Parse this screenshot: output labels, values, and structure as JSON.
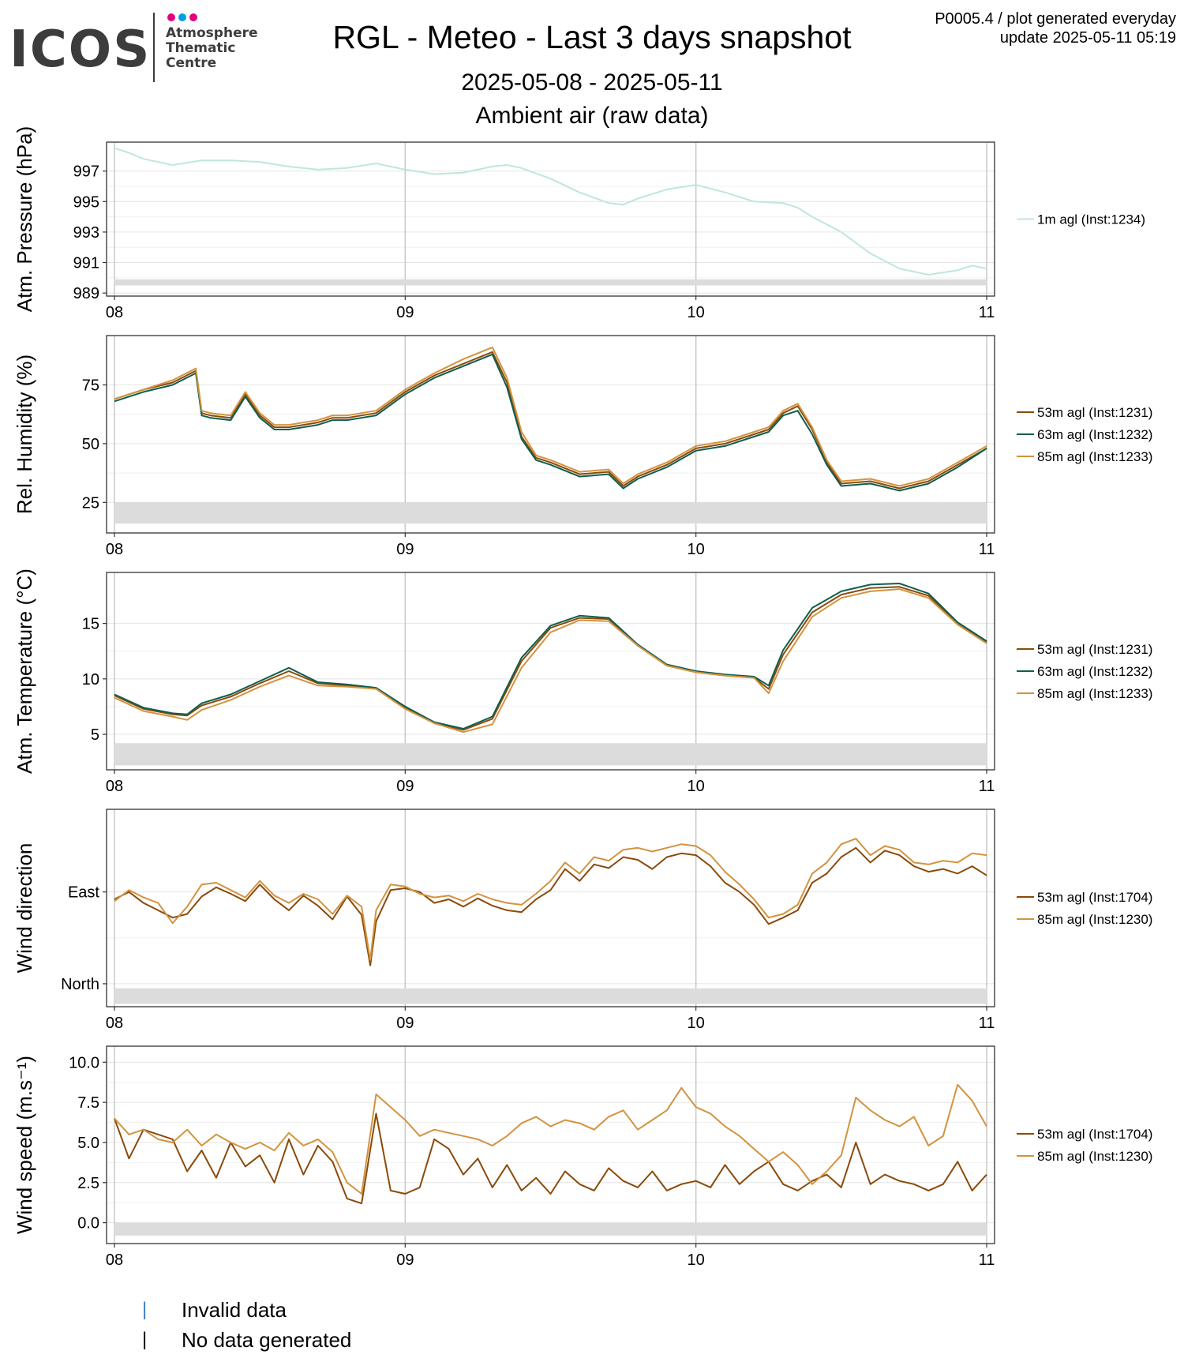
{
  "logo": {
    "name": "ICOS",
    "line1": "Atmosphere",
    "line2": "Thematic",
    "line3": "Centre"
  },
  "header": {
    "title": "RGL - Meteo - Last 3 days snapshot",
    "date_range": "2025-05-08 - 2025-05-11",
    "section": "Ambient air (raw data)",
    "meta1": "P0005.4 / plot generated everyday",
    "meta2": "update  2025-05-11 05:19"
  },
  "footer": {
    "items": [
      {
        "mark": "|",
        "label": "Invalid data",
        "color": "#3a7ec7"
      },
      {
        "mark": "|",
        "label": "No data generated",
        "color": "#000000"
      }
    ]
  },
  "colors": {
    "c53": "#8B4A0A",
    "c63": "#0E5E4F",
    "c85": "#D3933E",
    "pressure": "#bfe6df"
  },
  "chart_data": [
    {
      "type": "line",
      "ylabel": "Atm. Pressure (hPa)",
      "x_ticks": [
        "08",
        "09",
        "10",
        "11"
      ],
      "ylim": [
        988.8,
        998.9
      ],
      "y_ticks": [
        {
          "v": 997,
          "l": "997"
        },
        {
          "v": 995,
          "l": "995"
        },
        {
          "v": 993,
          "l": "993"
        },
        {
          "v": 991,
          "l": "991"
        },
        {
          "v": 989,
          "l": "989"
        }
      ],
      "nodata_band": [
        989.5,
        989.9
      ],
      "legend": "right",
      "series": [
        {
          "name": "1m agl (Inst:1234)",
          "color": "#bfe6df",
          "x": [
            0,
            0.05,
            0.1,
            0.2,
            0.3,
            0.4,
            0.5,
            0.6,
            0.7,
            0.8,
            0.9,
            1.0,
            1.1,
            1.2,
            1.3,
            1.35,
            1.4,
            1.5,
            1.6,
            1.7,
            1.75,
            1.8,
            1.9,
            2.0,
            2.1,
            2.2,
            2.3,
            2.35,
            2.4,
            2.5,
            2.6,
            2.7,
            2.8,
            2.9,
            2.95,
            3.0
          ],
          "y": [
            998.5,
            998.2,
            997.8,
            997.4,
            997.7,
            997.7,
            997.6,
            997.3,
            997.1,
            997.2,
            997.5,
            997.1,
            996.8,
            996.9,
            997.3,
            997.4,
            997.2,
            996.5,
            995.6,
            994.9,
            994.8,
            995.2,
            995.8,
            996.1,
            995.6,
            995.0,
            994.9,
            994.6,
            994.0,
            993.0,
            991.6,
            990.6,
            990.2,
            990.5,
            990.8,
            990.6
          ]
        }
      ]
    },
    {
      "type": "line",
      "ylabel": "Rel. Humidity (%)",
      "x_ticks": [
        "08",
        "09",
        "10",
        "11"
      ],
      "ylim": [
        12,
        96
      ],
      "y_ticks": [
        {
          "v": 75,
          "l": "75"
        },
        {
          "v": 50,
          "l": "50"
        },
        {
          "v": 25,
          "l": "25"
        }
      ],
      "nodata_band": [
        16,
        25
      ],
      "legend": "right",
      "x_shared": [
        0,
        0.1,
        0.2,
        0.28,
        0.3,
        0.33,
        0.4,
        0.45,
        0.5,
        0.55,
        0.6,
        0.7,
        0.75,
        0.8,
        0.9,
        1.0,
        1.1,
        1.2,
        1.3,
        1.35,
        1.4,
        1.45,
        1.5,
        1.6,
        1.7,
        1.75,
        1.8,
        1.9,
        2.0,
        2.1,
        2.2,
        2.25,
        2.3,
        2.35,
        2.4,
        2.45,
        2.5,
        2.6,
        2.7,
        2.8,
        2.9,
        3.0
      ],
      "series": [
        {
          "name": "53m agl (Inst:1231)",
          "color": "#8B4A0A",
          "y": [
            69,
            73,
            76,
            81,
            63,
            62,
            61,
            71,
            62,
            57,
            57,
            59,
            61,
            61,
            63,
            72,
            79,
            84,
            89,
            76,
            53,
            44,
            42,
            37,
            38,
            32,
            36,
            41,
            48,
            50,
            54,
            56,
            63,
            66,
            56,
            42,
            33,
            34,
            31,
            34,
            41,
            48
          ]
        },
        {
          "name": "63m agl (Inst:1232)",
          "color": "#0E5E4F",
          "y": [
            68,
            72,
            75,
            80,
            62,
            61,
            60,
            70,
            61,
            56,
            56,
            58,
            60,
            60,
            62,
            71,
            78,
            83,
            88,
            74,
            52,
            43,
            41,
            36,
            37,
            31,
            35,
            40,
            47,
            49,
            53,
            55,
            62,
            64,
            54,
            41,
            32,
            33,
            30,
            33,
            40,
            48
          ]
        },
        {
          "name": "85m agl (Inst:1233)",
          "color": "#D3933E",
          "y": [
            69,
            73,
            77,
            82,
            64,
            63,
            62,
            72,
            63,
            58,
            58,
            60,
            62,
            62,
            64,
            73,
            80,
            86,
            91,
            78,
            55,
            45,
            43,
            38,
            39,
            33,
            37,
            42,
            49,
            51,
            55,
            57,
            64,
            67,
            57,
            43,
            34,
            35,
            32,
            35,
            42,
            49
          ]
        }
      ]
    },
    {
      "type": "line",
      "ylabel": "Atm. Temperature (°C)",
      "x_ticks": [
        "08",
        "09",
        "10",
        "11"
      ],
      "ylim": [
        1.8,
        19.6
      ],
      "y_ticks": [
        {
          "v": 15,
          "l": "15"
        },
        {
          "v": 10,
          "l": "10"
        },
        {
          "v": 5,
          "l": "5"
        }
      ],
      "nodata_band": [
        2.2,
        4.2
      ],
      "legend": "right",
      "x_shared": [
        0,
        0.1,
        0.2,
        0.25,
        0.3,
        0.4,
        0.5,
        0.6,
        0.7,
        0.8,
        0.9,
        1.0,
        1.1,
        1.2,
        1.3,
        1.4,
        1.5,
        1.6,
        1.7,
        1.8,
        1.9,
        2.0,
        2.1,
        2.2,
        2.25,
        2.3,
        2.4,
        2.5,
        2.6,
        2.7,
        2.8,
        2.9,
        3.0
      ],
      "series": [
        {
          "name": "53m agl (Inst:1231)",
          "color": "#8B4A0A",
          "y": [
            8.5,
            7.3,
            6.8,
            6.7,
            7.6,
            8.4,
            9.6,
            10.7,
            9.6,
            9.4,
            9.1,
            7.4,
            6.0,
            5.4,
            6.4,
            11.6,
            14.6,
            15.5,
            15.4,
            13.0,
            11.2,
            10.6,
            10.3,
            10.1,
            9.1,
            12.2,
            16.0,
            17.6,
            18.2,
            18.3,
            17.5,
            15.0,
            13.3
          ]
        },
        {
          "name": "63m agl (Inst:1232)",
          "color": "#0E5E4F",
          "y": [
            8.6,
            7.4,
            6.9,
            6.8,
            7.8,
            8.6,
            9.8,
            11.0,
            9.7,
            9.5,
            9.2,
            7.5,
            6.1,
            5.5,
            6.6,
            11.9,
            14.8,
            15.7,
            15.5,
            13.1,
            11.3,
            10.7,
            10.4,
            10.2,
            9.4,
            12.6,
            16.4,
            17.9,
            18.5,
            18.6,
            17.7,
            15.1,
            13.4
          ]
        },
        {
          "name": "85m agl (Inst:1233)",
          "color": "#D3933E",
          "y": [
            8.3,
            7.1,
            6.6,
            6.3,
            7.2,
            8.1,
            9.3,
            10.3,
            9.4,
            9.3,
            9.1,
            7.3,
            6.0,
            5.2,
            5.9,
            11.0,
            14.2,
            15.3,
            15.2,
            13.0,
            11.2,
            10.6,
            10.3,
            10.1,
            8.7,
            11.6,
            15.6,
            17.3,
            17.9,
            18.1,
            17.3,
            14.9,
            13.2
          ]
        }
      ]
    },
    {
      "type": "line",
      "ylabel": "Wind direction",
      "x_ticks": [
        "08",
        "09",
        "10",
        "11"
      ],
      "ylim": [
        -25,
        190
      ],
      "y_ticks": [
        {
          "v": 100,
          "l": "East"
        },
        {
          "v": 0,
          "l": "North"
        }
      ],
      "nodata_band": [
        -22,
        -5
      ],
      "legend": "right",
      "x_shared": [
        0,
        0.05,
        0.1,
        0.15,
        0.2,
        0.25,
        0.3,
        0.35,
        0.4,
        0.45,
        0.5,
        0.55,
        0.6,
        0.65,
        0.7,
        0.75,
        0.8,
        0.85,
        0.88,
        0.9,
        0.95,
        1.0,
        1.05,
        1.1,
        1.15,
        1.2,
        1.25,
        1.3,
        1.35,
        1.4,
        1.45,
        1.5,
        1.55,
        1.6,
        1.65,
        1.7,
        1.75,
        1.8,
        1.85,
        1.9,
        1.95,
        2.0,
        2.05,
        2.1,
        2.15,
        2.2,
        2.25,
        2.3,
        2.35,
        2.4,
        2.45,
        2.5,
        2.55,
        2.6,
        2.65,
        2.7,
        2.75,
        2.8,
        2.85,
        2.9,
        2.95,
        3.0
      ],
      "series": [
        {
          "name": "53m agl (Inst:1704)",
          "color": "#8B4A0A",
          "y": [
            92,
            100,
            88,
            80,
            72,
            76,
            95,
            105,
            98,
            90,
            108,
            92,
            80,
            96,
            85,
            70,
            95,
            75,
            20,
            68,
            102,
            104,
            100,
            88,
            92,
            84,
            93,
            85,
            80,
            78,
            92,
            102,
            125,
            112,
            130,
            126,
            138,
            135,
            125,
            138,
            142,
            140,
            128,
            110,
            100,
            86,
            65,
            72,
            80,
            110,
            120,
            138,
            148,
            132,
            145,
            140,
            128,
            122,
            125,
            120,
            128,
            118
          ]
        },
        {
          "name": "85m agl (Inst:1230)",
          "color": "#D3933E",
          "y": [
            90,
            102,
            94,
            88,
            66,
            84,
            108,
            110,
            102,
            94,
            112,
            96,
            88,
            98,
            92,
            76,
            96,
            84,
            26,
            80,
            108,
            106,
            98,
            94,
            96,
            90,
            98,
            92,
            88,
            86,
            98,
            112,
            132,
            120,
            138,
            134,
            146,
            148,
            144,
            148,
            152,
            150,
            140,
            122,
            108,
            92,
            72,
            76,
            86,
            120,
            132,
            152,
            158,
            140,
            150,
            146,
            132,
            130,
            134,
            132,
            142,
            140
          ]
        }
      ]
    },
    {
      "type": "line",
      "ylabel": "Wind speed (m.s⁻¹)",
      "x_ticks": [
        "08",
        "09",
        "10",
        "11"
      ],
      "ylim": [
        -1.3,
        11.0
      ],
      "y_ticks": [
        {
          "v": 10,
          "l": "10.0"
        },
        {
          "v": 7.5,
          "l": "7.5"
        },
        {
          "v": 5,
          "l": "5.0"
        },
        {
          "v": 2.5,
          "l": "2.5"
        },
        {
          "v": 0,
          "l": "0.0"
        }
      ],
      "nodata_band": [
        -0.8,
        0.0
      ],
      "legend": "right",
      "x_shared": [
        0,
        0.05,
        0.1,
        0.15,
        0.2,
        0.25,
        0.3,
        0.35,
        0.4,
        0.45,
        0.5,
        0.55,
        0.6,
        0.65,
        0.7,
        0.75,
        0.8,
        0.85,
        0.9,
        0.95,
        1.0,
        1.05,
        1.1,
        1.15,
        1.2,
        1.25,
        1.3,
        1.35,
        1.4,
        1.45,
        1.5,
        1.55,
        1.6,
        1.65,
        1.7,
        1.75,
        1.8,
        1.85,
        1.9,
        1.95,
        2.0,
        2.05,
        2.1,
        2.15,
        2.2,
        2.25,
        2.3,
        2.35,
        2.4,
        2.45,
        2.5,
        2.55,
        2.6,
        2.65,
        2.7,
        2.75,
        2.8,
        2.85,
        2.9,
        2.95,
        3.0
      ],
      "series": [
        {
          "name": "53m agl (Inst:1704)",
          "color": "#8B4A0A",
          "y": [
            6.5,
            4.0,
            5.8,
            5.5,
            5.2,
            3.2,
            4.5,
            2.8,
            5.0,
            3.5,
            4.2,
            2.5,
            5.2,
            3.0,
            4.8,
            3.8,
            1.5,
            1.2,
            6.8,
            2.0,
            1.8,
            2.2,
            5.2,
            4.6,
            3.0,
            4.0,
            2.2,
            3.6,
            2.0,
            2.8,
            1.8,
            3.2,
            2.4,
            2.0,
            3.4,
            2.6,
            2.2,
            3.2,
            2.0,
            2.4,
            2.6,
            2.2,
            3.6,
            2.4,
            3.2,
            3.8,
            2.4,
            2.0,
            2.6,
            3.0,
            2.2,
            5.0,
            2.4,
            3.0,
            2.6,
            2.4,
            2.0,
            2.4,
            3.8,
            2.0,
            3.0
          ]
        },
        {
          "name": "85m agl (Inst:1230)",
          "color": "#D3933E",
          "y": [
            6.5,
            5.5,
            5.8,
            5.2,
            5.0,
            5.8,
            4.8,
            5.5,
            5.0,
            4.6,
            5.0,
            4.5,
            5.6,
            4.8,
            5.2,
            4.4,
            2.5,
            1.8,
            8.0,
            7.2,
            6.4,
            5.4,
            5.8,
            5.6,
            5.4,
            5.2,
            4.8,
            5.4,
            6.2,
            6.6,
            6.0,
            6.4,
            6.2,
            5.8,
            6.6,
            7.0,
            5.8,
            6.4,
            7.0,
            8.4,
            7.2,
            6.8,
            6.0,
            5.4,
            4.6,
            3.8,
            4.4,
            3.6,
            2.4,
            3.2,
            4.2,
            7.8,
            7.0,
            6.4,
            6.0,
            6.6,
            4.8,
            5.4,
            8.6,
            7.6,
            6.0
          ]
        }
      ]
    }
  ]
}
